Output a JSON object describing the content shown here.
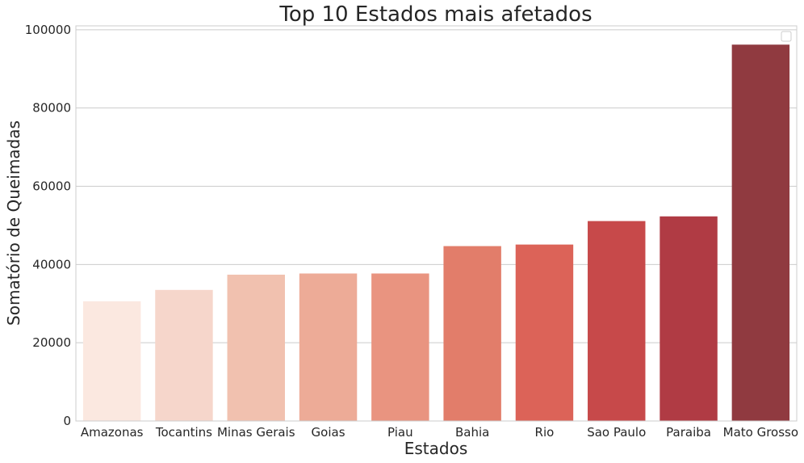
{
  "chart_data": {
    "type": "bar",
    "title": "Top 10 Estados mais afetados",
    "xlabel": "Estados",
    "ylabel": "Somatório de Queimadas",
    "categories": [
      "Amazonas",
      "Tocantins",
      "Minas Gerais",
      "Goias",
      "Piau",
      "Bahia",
      "Rio",
      "Sao Paulo",
      "Paraiba",
      "Mato Grosso"
    ],
    "values": [
      30600,
      33500,
      37400,
      37700,
      37700,
      44700,
      45100,
      51100,
      52300,
      96200
    ],
    "ylim": [
      0,
      101000
    ],
    "yticks": [
      0,
      20000,
      40000,
      60000,
      80000,
      100000
    ],
    "ytick_labels": [
      "0",
      "20000",
      "40000",
      "60000",
      "80000",
      "100000"
    ],
    "colors": [
      "#fbe8e0",
      "#f6d6cb",
      "#f1c1af",
      "#edab97",
      "#e99480",
      "#e27d6a",
      "#dc6358",
      "#c7494a",
      "#b03b44",
      "#903a40"
    ],
    "grid": true,
    "legend": "top-right (empty)"
  }
}
